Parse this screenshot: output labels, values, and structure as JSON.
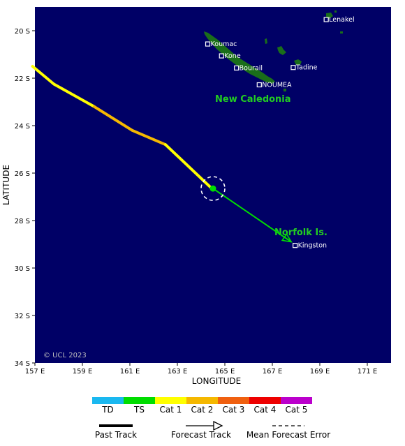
{
  "map": {
    "background_color": "#000066",
    "land_color": "#1a6e1a",
    "lat_range": [
      -34,
      -19
    ],
    "lon_range": [
      157,
      172
    ],
    "x_axis_title": "LONGITUDE",
    "y_axis_title": "LATITUDE",
    "lat_ticks": [
      "20 S",
      "22 S",
      "24 S",
      "26 S",
      "28 S",
      "30 S",
      "32 S",
      "34 S"
    ],
    "lon_ticks": [
      "157 E",
      "159 E",
      "161 E",
      "163 E",
      "165 E",
      "167 E",
      "169 E",
      "171 E"
    ],
    "copyright": "© UCL 2023",
    "region_labels": {
      "new_caledonia": "New Caledonia",
      "norfolk": "Norfolk Is."
    },
    "places": [
      {
        "name": "Lenakel",
        "lat": -19.53,
        "lon": 169.27
      },
      {
        "name": "Koumac",
        "lat": -20.56,
        "lon": 164.28
      },
      {
        "name": "Kone",
        "lat": -21.06,
        "lon": 164.86
      },
      {
        "name": "Bourail",
        "lat": -21.57,
        "lon": 165.49
      },
      {
        "name": "Tadine",
        "lat": -21.55,
        "lon": 167.88
      },
      {
        "name": "NOUMEA",
        "lat": -22.28,
        "lon": 166.45
      },
      {
        "name": "Kingston",
        "lat": -29.05,
        "lon": 167.96
      }
    ]
  },
  "track": {
    "past": [
      {
        "lat": -21.5,
        "lon": 156.9,
        "category": "Cat 1"
      },
      {
        "lat": -22.25,
        "lon": 157.8,
        "category": "Cat 1"
      },
      {
        "lat": -23.2,
        "lon": 159.5,
        "category": "Cat 1"
      },
      {
        "lat": -24.2,
        "lon": 161.1,
        "category": "Cat 2"
      },
      {
        "lat": -24.8,
        "lon": 162.5,
        "category": "Cat 2"
      },
      {
        "lat": -26.6,
        "lon": 164.4,
        "category": "Cat 1"
      }
    ],
    "current": {
      "lat": -26.65,
      "lon": 164.5,
      "category": "TS"
    },
    "forecast": [
      {
        "lat": -26.65,
        "lon": 164.5
      },
      {
        "lat": -28.9,
        "lon": 167.8
      }
    ]
  },
  "legend": {
    "categories": [
      {
        "label": "TD",
        "color": "#1ab8f0"
      },
      {
        "label": "TS",
        "color": "#00dd00"
      },
      {
        "label": "Cat 1",
        "color": "#ffff00"
      },
      {
        "label": "Cat 2",
        "color": "#f5b800"
      },
      {
        "label": "Cat 3",
        "color": "#f06010"
      },
      {
        "label": "Cat 4",
        "color": "#ee0000"
      },
      {
        "label": "Cat 5",
        "color": "#bb00cc"
      }
    ],
    "past_track": "Past Track",
    "forecast_track": "Forecast Track",
    "mean_error": "Mean Forecast Error"
  }
}
